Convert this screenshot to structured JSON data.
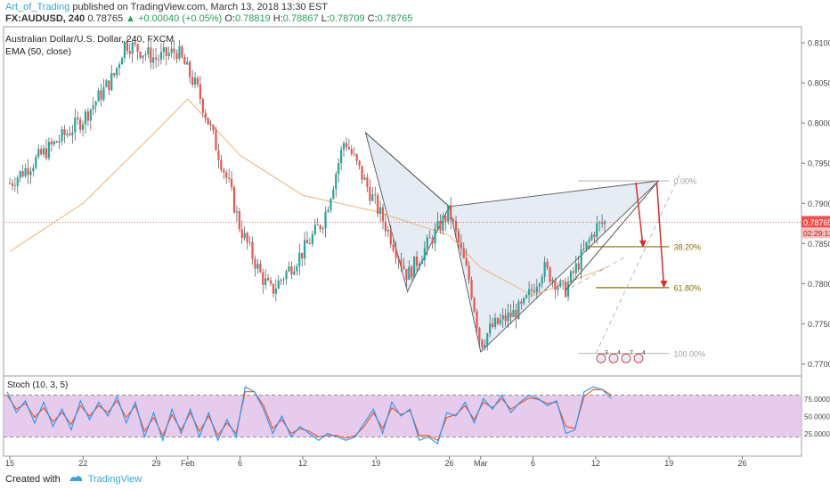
{
  "header": {
    "author": "Art_of_Trading",
    "published": " published on TradingView.com, March 13, 2018 13:30 EST",
    "quote_symbol": "FX:AUDUSD, 240",
    "quote_price": "0.78765",
    "quote_change": "▲ +0.00040 (+0.05%)",
    "ohlc_o_label": "O:",
    "ohlc_o": "0.78819",
    "ohlc_h_label": "H:",
    "ohlc_h": "0.78867",
    "ohlc_l_label": "L:",
    "ohlc_l": "0.78709",
    "ohlc_c_label": "C:",
    "ohlc_c": "0.78765"
  },
  "legend": {
    "title": "Australian Dollar/U.S. Dollar, 240, FXCM",
    "ema": "EMA (50, close)"
  },
  "colors": {
    "up": "#26a69a",
    "down": "#ef5350",
    "ema": "#f0b27a",
    "fib": "#8a6d00",
    "arrow": "#d32f2f",
    "pattern_fill": "#dbe4f0",
    "stoch_k": "#2196f3",
    "stoch_d": "#f4511e",
    "stoch_band": "#e1bee7"
  },
  "chart_data": [
    {
      "type": "candlestick",
      "title": "Australian Dollar/U.S. Dollar, 240, FXCM",
      "y_ticks": [
        "0.81000",
        "0.80500",
        "0.80000",
        "0.79500",
        "0.79000",
        "0.78500",
        "0.78000",
        "0.77500",
        "0.77000"
      ],
      "ylim": [
        0.7685,
        0.812
      ],
      "x_ticks": [
        "15",
        "22",
        "29",
        "Feb",
        "6",
        "12",
        "19",
        "26",
        "Mar",
        "6",
        "12",
        "19",
        "26"
      ],
      "last_price": "0.78765",
      "countdown": "02:29:13",
      "close_path": [
        [
          "Jan 15",
          0.7925
        ],
        [
          "Jan 18",
          0.796
        ],
        [
          "Jan 22",
          0.8005
        ],
        [
          "Jan 25",
          0.806
        ],
        [
          "Jan 26",
          0.81
        ],
        [
          "Jan 29",
          0.808
        ],
        [
          "Jan 31",
          0.809
        ],
        [
          "Feb 1",
          0.8065
        ],
        [
          "Feb 2",
          0.804
        ],
        [
          "Feb 5",
          0.792
        ],
        [
          "Feb 6",
          0.787
        ],
        [
          "Feb 8",
          0.781
        ],
        [
          "Feb 9",
          0.779
        ],
        [
          "Feb 12",
          0.784
        ],
        [
          "Feb 14",
          0.788
        ],
        [
          "Feb 15",
          0.793
        ],
        [
          "Feb 16",
          0.798
        ],
        [
          "Feb 20",
          0.787
        ],
        [
          "Feb 22",
          0.781
        ],
        [
          "Feb 23",
          0.783
        ],
        [
          "Feb 26",
          0.789
        ],
        [
          "Feb 28",
          0.78
        ],
        [
          "Mar 1",
          0.7725
        ],
        [
          "Mar 2",
          0.7745
        ],
        [
          "Mar 5",
          0.777
        ],
        [
          "Mar 7",
          0.782
        ],
        [
          "Mar 9",
          0.779
        ],
        [
          "Mar 12",
          0.787
        ],
        [
          "Mar 13",
          0.7877
        ]
      ],
      "ema_path": [
        [
          "Jan 15",
          0.784
        ],
        [
          "Jan 22",
          0.79
        ],
        [
          "Jan 29",
          0.799
        ],
        [
          "Feb 1",
          0.803
        ],
        [
          "Feb 6",
          0.796
        ],
        [
          "Feb 12",
          0.791
        ],
        [
          "Feb 19",
          0.789
        ],
        [
          "Feb 26",
          0.786
        ],
        [
          "Mar 1",
          0.782
        ],
        [
          "Mar 6",
          0.7785
        ],
        [
          "Mar 9",
          0.78
        ],
        [
          "Mar 13",
          0.782
        ]
      ],
      "pattern": {
        "X": [
          "Feb 18",
          0.7988
        ],
        "A": [
          "Feb 22",
          0.779
        ],
        "B": [
          "Feb 26",
          0.7896
        ],
        "C": [
          "Mar 1",
          0.7715
        ],
        "D": [
          "Mar 18",
          0.7928
        ]
      },
      "fib_levels": [
        {
          "label": "0.00%",
          "value": 0.7928
        },
        {
          "label": "38.20%",
          "value": 0.7846
        },
        {
          "label": "61.80%",
          "value": 0.7795
        },
        {
          "label": "100.00%",
          "value": 0.7713
        }
      ],
      "events": [
        "3",
        "4",
        "7",
        "4"
      ]
    },
    {
      "type": "line",
      "title": "Stoch (10, 3, 5)",
      "y_ticks": [
        "75.0000",
        "50.0000",
        "25.0000"
      ],
      "ylim": [
        0,
        100
      ],
      "bands": [
        20,
        80
      ],
      "series": [
        {
          "values": [
            85,
            55,
            72,
            40,
            70,
            35,
            60,
            30,
            72,
            45,
            70,
            50,
            78,
            40,
            70,
            20,
            55,
            15,
            60,
            25,
            60,
            20,
            55,
            15,
            45,
            20,
            92,
            85,
            60,
            25,
            50,
            20,
            35,
            25,
            15,
            25,
            20,
            15,
            20,
            40,
            60,
            25,
            70,
            50,
            60,
            15,
            20,
            10,
            55,
            50,
            70,
            40,
            75,
            60,
            80,
            55,
            70,
            80,
            75,
            65,
            72,
            25,
            30,
            85,
            92,
            88,
            75
          ]
        },
        {
          "values": [
            80,
            60,
            68,
            48,
            62,
            42,
            55,
            38,
            65,
            50,
            65,
            55,
            72,
            48,
            65,
            28,
            48,
            22,
            52,
            30,
            55,
            28,
            50,
            22,
            40,
            25,
            85,
            85,
            65,
            32,
            45,
            25,
            32,
            28,
            20,
            22,
            22,
            18,
            22,
            35,
            55,
            32,
            62,
            52,
            58,
            22,
            22,
            15,
            48,
            52,
            65,
            45,
            70,
            62,
            75,
            60,
            68,
            76,
            74,
            68,
            70,
            35,
            32,
            78,
            88,
            88,
            80
          ]
        }
      ]
    }
  ],
  "footer": {
    "created_with": "Created with",
    "brand": "TradingView"
  }
}
